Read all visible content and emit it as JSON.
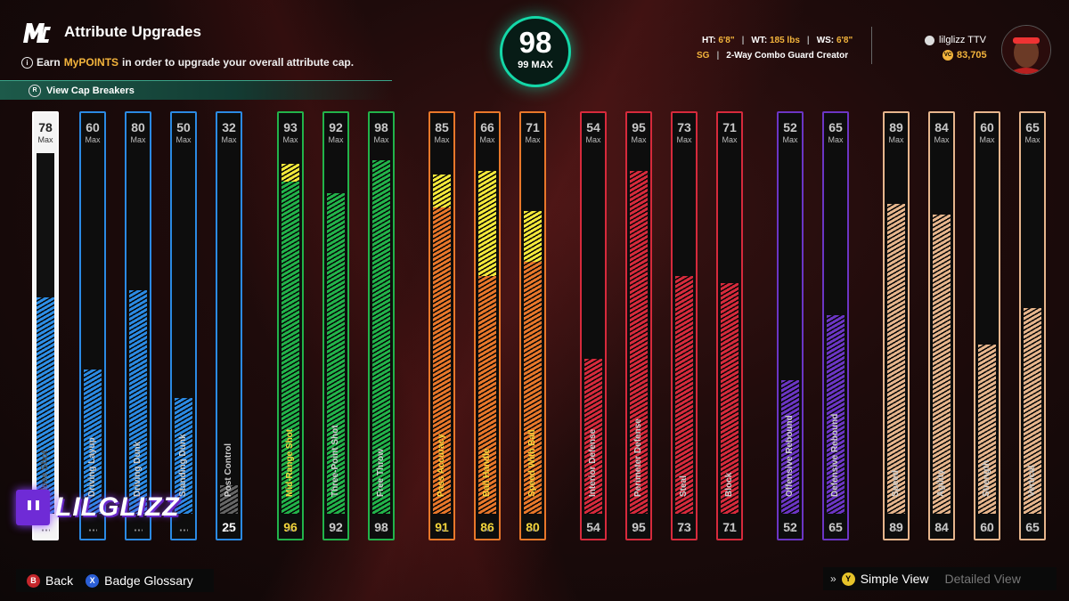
{
  "header": {
    "logo": "MC",
    "title": "Attribute Upgrades",
    "subtitle_prefix": "Earn",
    "subtitle_highlight": "MyPOINTS",
    "subtitle_suffix": "in order to upgrade your overall attribute cap.",
    "cap_breakers": "View Cap Breakers"
  },
  "overall": {
    "value": "98",
    "max": "99 MAX",
    "ring_color": "#14d8a8"
  },
  "player": {
    "ht_label": "HT:",
    "ht": "6'8\"",
    "wt_label": "WT:",
    "wt": "185 lbs",
    "ws_label": "WS:",
    "ws": "6'8\"",
    "position": "SG",
    "archetype": "2-Way Combo Guard Creator",
    "gamertag": "lilglizz TTV",
    "vc": "83,705",
    "vc_label": "VC"
  },
  "attributes": [
    {
      "name": "Close Shot",
      "cap": 78,
      "current": "",
      "fill": 60,
      "boost": 0,
      "color": "#ffffff",
      "fill_color": "#2d8ee6",
      "selected": true,
      "locked": false
    },
    {
      "name": "Driving Layup",
      "cap": 60,
      "current": "",
      "fill": 40,
      "boost": 0,
      "color": "#2b8ae3",
      "fill_color": "#2b8ae3"
    },
    {
      "name": "Driving Dunk",
      "cap": 80,
      "current": "",
      "fill": 62,
      "boost": 0,
      "color": "#2b8ae3",
      "fill_color": "#2b8ae3"
    },
    {
      "name": "Standing Dunk",
      "cap": 50,
      "current": "",
      "fill": 32,
      "boost": 0,
      "color": "#2b8ae3",
      "fill_color": "#2b8ae3"
    },
    {
      "name": "Post Control",
      "cap": 32,
      "current": "25",
      "fill": 8,
      "boost": 0,
      "color": "#2b8ae3",
      "fill_color": "#666666"
    },
    {
      "name": "Mid-Range Shot",
      "cap": 93,
      "current": "96",
      "fill": 92,
      "boost": 5,
      "color": "#22b34a",
      "fill_color": "#22b34a",
      "current_color": "#f3d53c",
      "name_color": "#f3d53c"
    },
    {
      "name": "Three-Point Shot",
      "cap": 92,
      "current": "92",
      "fill": 89,
      "boost": 0,
      "color": "#22b34a",
      "fill_color": "#22b34a"
    },
    {
      "name": "Free Throw",
      "cap": 98,
      "current": "98",
      "fill": 98,
      "boost": 0,
      "color": "#22b34a",
      "fill_color": "#22b34a"
    },
    {
      "name": "Pass Accuracy",
      "cap": 85,
      "current": "91",
      "fill": 85,
      "boost": 9,
      "color": "#e8772a",
      "fill_color": "#e8772a",
      "current_color": "#f3d53c",
      "name_color": "#f3d53c"
    },
    {
      "name": "Ball Handle",
      "cap": 66,
      "current": "86",
      "fill": 66,
      "boost": 29,
      "color": "#e8772a",
      "fill_color": "#e8772a",
      "current_color": "#f3d53c",
      "name_color": "#f3d53c"
    },
    {
      "name": "Speed With Ball",
      "cap": 71,
      "current": "80",
      "fill": 70,
      "boost": 14,
      "color": "#e8772a",
      "fill_color": "#e8772a",
      "current_color": "#f3d53c",
      "name_color": "#f3d53c"
    },
    {
      "name": "Interior Defense",
      "cap": 54,
      "current": "54",
      "fill": 43,
      "boost": 0,
      "color": "#d62a3c",
      "fill_color": "#d62a3c"
    },
    {
      "name": "Perimeter Defense",
      "cap": 95,
      "current": "95",
      "fill": 95,
      "boost": 0,
      "color": "#d62a3c",
      "fill_color": "#d62a3c"
    },
    {
      "name": "Steal",
      "cap": 73,
      "current": "73",
      "fill": 66,
      "boost": 0,
      "color": "#d62a3c",
      "fill_color": "#d62a3c"
    },
    {
      "name": "Block",
      "cap": 71,
      "current": "71",
      "fill": 64,
      "boost": 0,
      "color": "#d62a3c",
      "fill_color": "#d62a3c"
    },
    {
      "name": "Offensive Rebound",
      "cap": 52,
      "current": "52",
      "fill": 37,
      "boost": 0,
      "color": "#6b35c4",
      "fill_color": "#6b35c4"
    },
    {
      "name": "Defensive Rebound",
      "cap": 65,
      "current": "65",
      "fill": 55,
      "boost": 0,
      "color": "#6b35c4",
      "fill_color": "#6b35c4"
    },
    {
      "name": "Speed",
      "cap": 89,
      "current": "89",
      "fill": 86,
      "boost": 0,
      "color": "#e6b58c",
      "fill_color": "#e6b58c"
    },
    {
      "name": "Agility",
      "cap": 84,
      "current": "84",
      "fill": 83,
      "boost": 0,
      "color": "#e6b58c",
      "fill_color": "#e6b58c"
    },
    {
      "name": "Strength",
      "cap": 60,
      "current": "60",
      "fill": 47,
      "boost": 0,
      "color": "#e6b58c",
      "fill_color": "#e6b58c"
    },
    {
      "name": "Vertical",
      "cap": 65,
      "current": "65",
      "fill": 57,
      "boost": 0,
      "color": "#e6b58c",
      "fill_color": "#e6b58c"
    }
  ],
  "cap_label": "Max",
  "overlay": {
    "streamer": "LILGLIZZ"
  },
  "footer": {
    "back_key": "B",
    "back": "Back",
    "glossary_key": "X",
    "glossary": "Badge Glossary",
    "view_key": "Y",
    "simple_view": "Simple View",
    "detailed_view": "Detailed View"
  }
}
